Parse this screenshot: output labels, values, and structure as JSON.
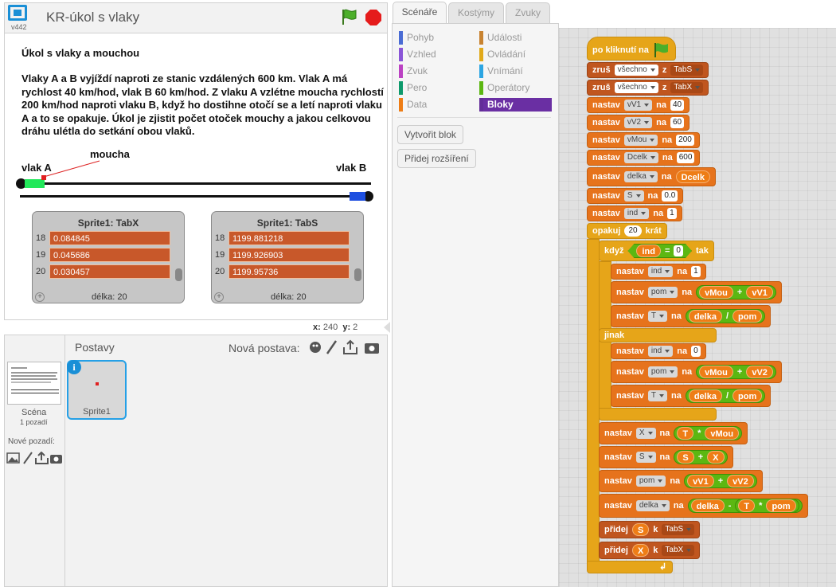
{
  "project": {
    "title": "KR-úkol s vlaky",
    "version": "v442"
  },
  "stage": {
    "heading": "Úkol s vlaky a mouchou",
    "text": "Vlaky A a B vyjíždí naproti ze stanic vzdálených 600 km. Vlak A má rychlost 40 km/hod, vlak B 60 km/hod. Z vlaku A vzlétne moucha rychlostí 200 km/hod naproti vlaku B, když ho dostihne otočí se a letí naproti vlaku A a to se opakuje. Úkol je zjistit počet otoček mouchy a jakou celkovou dráhu ulétla do setkání obou vlaků.",
    "label_fly": "moucha",
    "label_a": "vlak A",
    "label_b": "vlak B",
    "list_x": {
      "title": "Sprite1: TabX",
      "rows": [
        {
          "idx": "18",
          "val": "0.084845"
        },
        {
          "idx": "19",
          "val": "0.045686"
        },
        {
          "idx": "20",
          "val": "0.030457"
        }
      ],
      "length": "délka: 20",
      "plus": "+"
    },
    "list_s": {
      "title": "Sprite1: TabS",
      "rows": [
        {
          "idx": "18",
          "val": "1199.881218"
        },
        {
          "idx": "19",
          "val": "1199.926903"
        },
        {
          "idx": "20",
          "val": "1199.95736"
        }
      ],
      "length": "délka: 20",
      "plus": "+"
    }
  },
  "coords": {
    "x_label": "x:",
    "x": "240",
    "y_label": "y:",
    "y": "2"
  },
  "sprites": {
    "heading": "Postavy",
    "new_sprite": "Nová postava:",
    "scene_label": "Scéna",
    "scene_count": "1 pozadí",
    "new_backdrop": "Nové pozadí:",
    "sprite_name": "Sprite1",
    "info": "i"
  },
  "tabs": [
    "Scénáře",
    "Kostýmy",
    "Zvuky"
  ],
  "categories": [
    {
      "label": "Pohyb",
      "color": "#4a6cd4"
    },
    {
      "label": "Události",
      "color": "#c88330"
    },
    {
      "label": "Vzhled",
      "color": "#8a55d7"
    },
    {
      "label": "Ovládání",
      "color": "#e1a91a"
    },
    {
      "label": "Zvuk",
      "color": "#bb42c3"
    },
    {
      "label": "Vnímání",
      "color": "#2ca5e2"
    },
    {
      "label": "Pero",
      "color": "#0e9a6c"
    },
    {
      "label": "Operátory",
      "color": "#5cb712"
    },
    {
      "label": "Data",
      "color": "#ee7d16"
    },
    {
      "label": "Bloky",
      "color": "#632d99"
    }
  ],
  "palette_buttons": {
    "make_block": "Vytvořit blok",
    "add_ext": "Přidej rozšíření"
  },
  "script": {
    "hat": "po kliknutí na",
    "w_zrus": "zruš",
    "w_z": "z",
    "w_vsechno": "všechno",
    "list_s": "TabS",
    "list_x": "TabX",
    "w_nastav": "nastav",
    "w_na": "na",
    "init": [
      {
        "var": "vV1",
        "val": "40"
      },
      {
        "var": "vV2",
        "val": "60"
      },
      {
        "var": "vMou",
        "val": "200"
      },
      {
        "var": "Dcelk",
        "val": "600"
      }
    ],
    "delka": "delka",
    "Dcelk": "Dcelk",
    "S": "S",
    "S_val": "0.0",
    "ind": "ind",
    "ind_val": "1",
    "w_opakuj": "opakuj",
    "repeat": "20",
    "w_krat": "krát",
    "w_kdyz": "když",
    "eq": "=",
    "zero": "0",
    "w_tak": "tak",
    "one": "1",
    "pom": "pom",
    "vMou": "vMou",
    "vV1": "vV1",
    "vV2": "vV2",
    "plus": "+",
    "T": "T",
    "div": "/",
    "w_jinak": "jinak",
    "X": "X",
    "mul": "*",
    "minus": "-",
    "w_pridej": "přidej",
    "w_k": "k",
    "arrow": "↲"
  }
}
